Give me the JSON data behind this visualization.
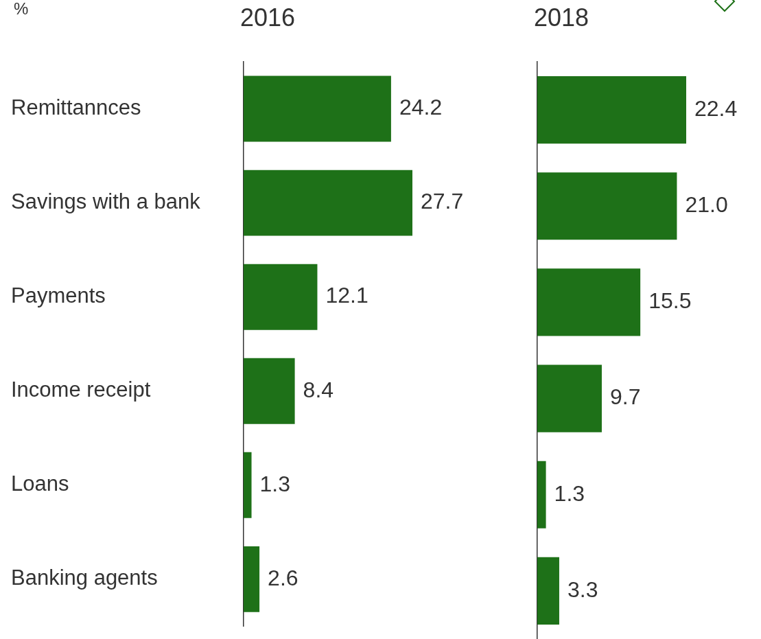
{
  "chart_data": [
    {
      "type": "bar",
      "orientation": "horizontal",
      "title": "2016",
      "annotations": [
        "%"
      ],
      "categories": [
        "Remittannces",
        "Savings with a bank",
        "Payments",
        "Income receipt",
        "Loans",
        "Banking agents"
      ],
      "values": [
        24.2,
        27.7,
        12.1,
        8.4,
        1.3,
        2.6
      ],
      "value_labels": [
        "24.2",
        "27.7",
        "12.1",
        "8.4",
        "1.3",
        "2.6"
      ],
      "color": "#1e7118",
      "grid": false,
      "legend": false,
      "tick_labels": "y"
    },
    {
      "type": "bar",
      "orientation": "horizontal",
      "title": "2018",
      "categories": [
        null,
        null,
        null,
        null,
        null,
        null
      ],
      "values": [
        22.4,
        21.0,
        15.5,
        9.7,
        1.3,
        3.3
      ],
      "value_labels": [
        "22.4",
        "21.0",
        "15.5",
        "9.7",
        "1.3",
        "3.3"
      ],
      "color": "#1e7118",
      "grid": false,
      "legend": false,
      "tick_labels": false
    }
  ]
}
